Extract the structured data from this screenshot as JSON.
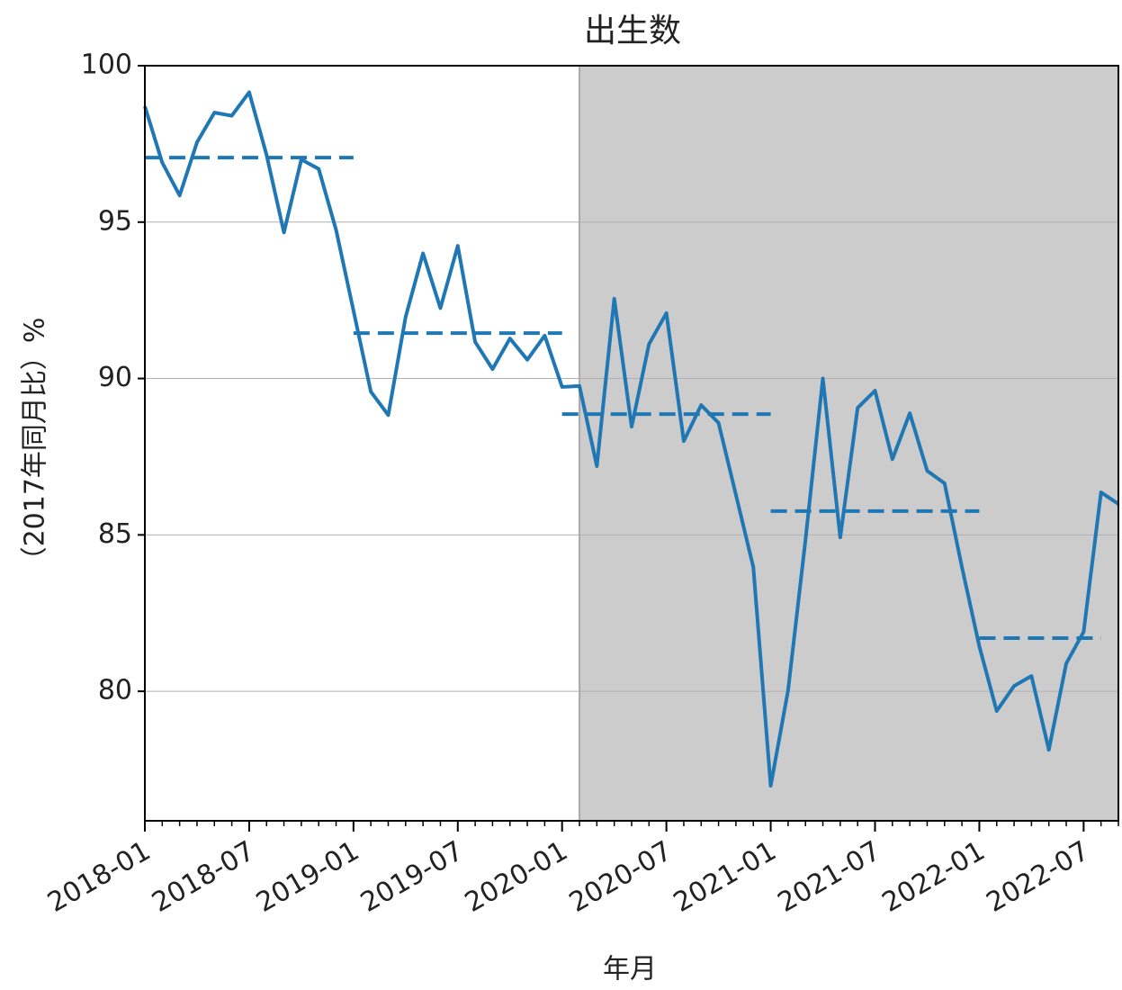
{
  "chart_data": {
    "type": "line",
    "title": "出生数",
    "xlabel": "年月",
    "ylabel": "（2017年同月比）%",
    "x": [
      "2018-01",
      "2018-02",
      "2018-03",
      "2018-04",
      "2018-05",
      "2018-06",
      "2018-07",
      "2018-08",
      "2018-09",
      "2018-10",
      "2018-11",
      "2018-12",
      "2019-01",
      "2019-02",
      "2019-03",
      "2019-04",
      "2019-05",
      "2019-06",
      "2019-07",
      "2019-08",
      "2019-09",
      "2019-10",
      "2019-11",
      "2019-12",
      "2020-01",
      "2020-02",
      "2020-03",
      "2020-04",
      "2020-05",
      "2020-06",
      "2020-07",
      "2020-08",
      "2020-09",
      "2020-10",
      "2020-11",
      "2020-12",
      "2021-01",
      "2021-02",
      "2021-03",
      "2021-04",
      "2021-05",
      "2021-06",
      "2021-07",
      "2021-08",
      "2021-09",
      "2021-10",
      "2021-11",
      "2021-12",
      "2022-01",
      "2022-02",
      "2022-03",
      "2022-04",
      "2022-05",
      "2022-06",
      "2022-07",
      "2022-08",
      "2022-09"
    ],
    "series": [
      {
        "color": "#1f77b4",
        "values": [
          98.7,
          96.9,
          95.85,
          97.55,
          98.5,
          98.4,
          99.15,
          97.15,
          94.67,
          97.0,
          96.7,
          94.75,
          92.17,
          89.58,
          88.83,
          91.97,
          94.0,
          92.25,
          94.24,
          91.17,
          90.3,
          91.28,
          90.6,
          91.37,
          89.73,
          89.76,
          87.2,
          92.55,
          88.46,
          91.1,
          92.09,
          88.0,
          89.15,
          88.58,
          86.28,
          83.97,
          76.98,
          80.03,
          84.84,
          90.0,
          84.92,
          89.06,
          89.61,
          87.42,
          88.89,
          87.05,
          86.65,
          83.97,
          81.44,
          79.37,
          80.17,
          80.49,
          78.13,
          80.89,
          81.9,
          86.36,
          85.99
        ]
      }
    ],
    "means": [
      {
        "start": "2018-01",
        "end": "2019-01",
        "value": 97.06
      },
      {
        "start": "2019-01",
        "end": "2020-01",
        "value": 91.45
      },
      {
        "start": "2020-01",
        "end": "2021-01",
        "value": 88.86
      },
      {
        "start": "2021-01",
        "end": "2022-01",
        "value": 85.76
      },
      {
        "start": "2022-01",
        "end": "2022-08",
        "value": 81.7
      }
    ],
    "mean_color": "#1f77b4",
    "shade_start": "2020-02",
    "shade_color": "#cccccc",
    "xlim": [
      "2018-01",
      "2022-09"
    ],
    "xticks": [
      "2018-01",
      "2018-07",
      "2019-01",
      "2019-07",
      "2020-01",
      "2020-07",
      "2021-01",
      "2021-07",
      "2022-01",
      "2022-07"
    ],
    "ylim": [
      75.86,
      100
    ],
    "yticks": [
      80,
      85,
      90,
      95,
      100
    ],
    "grid": true
  }
}
